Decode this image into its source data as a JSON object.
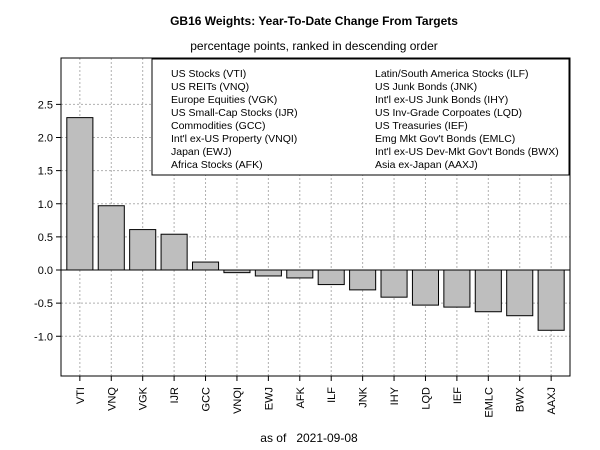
{
  "chart_data": {
    "type": "bar",
    "title": "GB16 Weights: Year-To-Date Change From Targets",
    "subtitle": "percentage points, ranked in descending order",
    "xlabel": "as of   2021-09-08",
    "ylabel": "",
    "ylim": [
      -1.6,
      3.2
    ],
    "yticks": [
      "2.5",
      "2.0",
      "1.5",
      "1.0",
      "0.5",
      "0.0",
      "-0.5",
      "-1.0"
    ],
    "ytick_values": [
      2.5,
      2.0,
      1.5,
      1.0,
      0.5,
      0.0,
      -0.5,
      -1.0
    ],
    "grid": true,
    "legend_position": "top-right",
    "categories": [
      "VTI",
      "VNQ",
      "VGK",
      "IJR",
      "GCC",
      "VNQI",
      "EWJ",
      "AFK",
      "ILF",
      "JNK",
      "IHY",
      "LQD",
      "IEF",
      "EMLC",
      "BWX",
      "AAXJ"
    ],
    "values": [
      2.3,
      0.97,
      0.61,
      0.54,
      0.12,
      -0.04,
      -0.09,
      -0.12,
      -0.22,
      -0.3,
      -0.41,
      -0.53,
      -0.56,
      -0.63,
      -0.69,
      -0.91
    ],
    "legend_left": [
      "US Stocks (VTI)",
      "US REITs (VNQ)",
      "Europe Equities (VGK)",
      "US Small-Cap Stocks (IJR)",
      "Commodities (GCC)",
      "Int'l ex-US Property (VNQI)",
      "Japan (EWJ)",
      "Africa Stocks (AFK)"
    ],
    "legend_right": [
      "Latin/South America Stocks (ILF)",
      "US Junk Bonds (JNK)",
      "Int'l ex-US Junk Bonds (IHY)",
      "US Inv-Grade Corpoates (LQD)",
      "US Treasuries (IEF)",
      "Emg Mkt Gov't Bonds (EMLC)",
      "Int'l ex-US Dev-Mkt Gov't Bonds (BWX)",
      "Asia ex-Japan (AAXJ)"
    ],
    "colors": {
      "bar": "#bebebe",
      "grid": "#b0b0b0",
      "axis": "#000000"
    }
  }
}
